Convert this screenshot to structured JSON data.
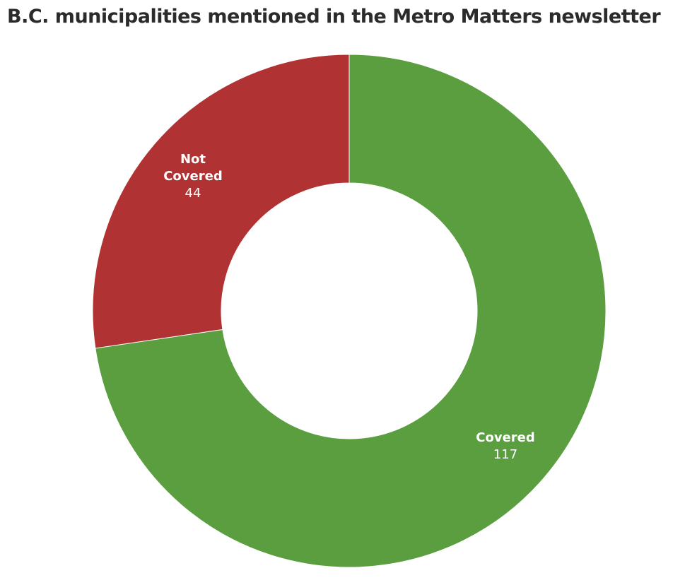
{
  "chart_data": {
    "type": "pie",
    "variant": "donut",
    "title": "B.C. municipalities mentioned in the Metro Matters newsletter",
    "slices": [
      {
        "label": "Covered",
        "label_lines": [
          "Covered"
        ],
        "value": 117,
        "display_value": "117",
        "color": "#5a9e40"
      },
      {
        "label": "Not Covered",
        "label_lines": [
          "Not",
          "Covered"
        ],
        "value": 44,
        "display_value": "44",
        "color": "#b13232"
      }
    ],
    "start": "top",
    "direction": "clockwise",
    "legend": "none"
  }
}
